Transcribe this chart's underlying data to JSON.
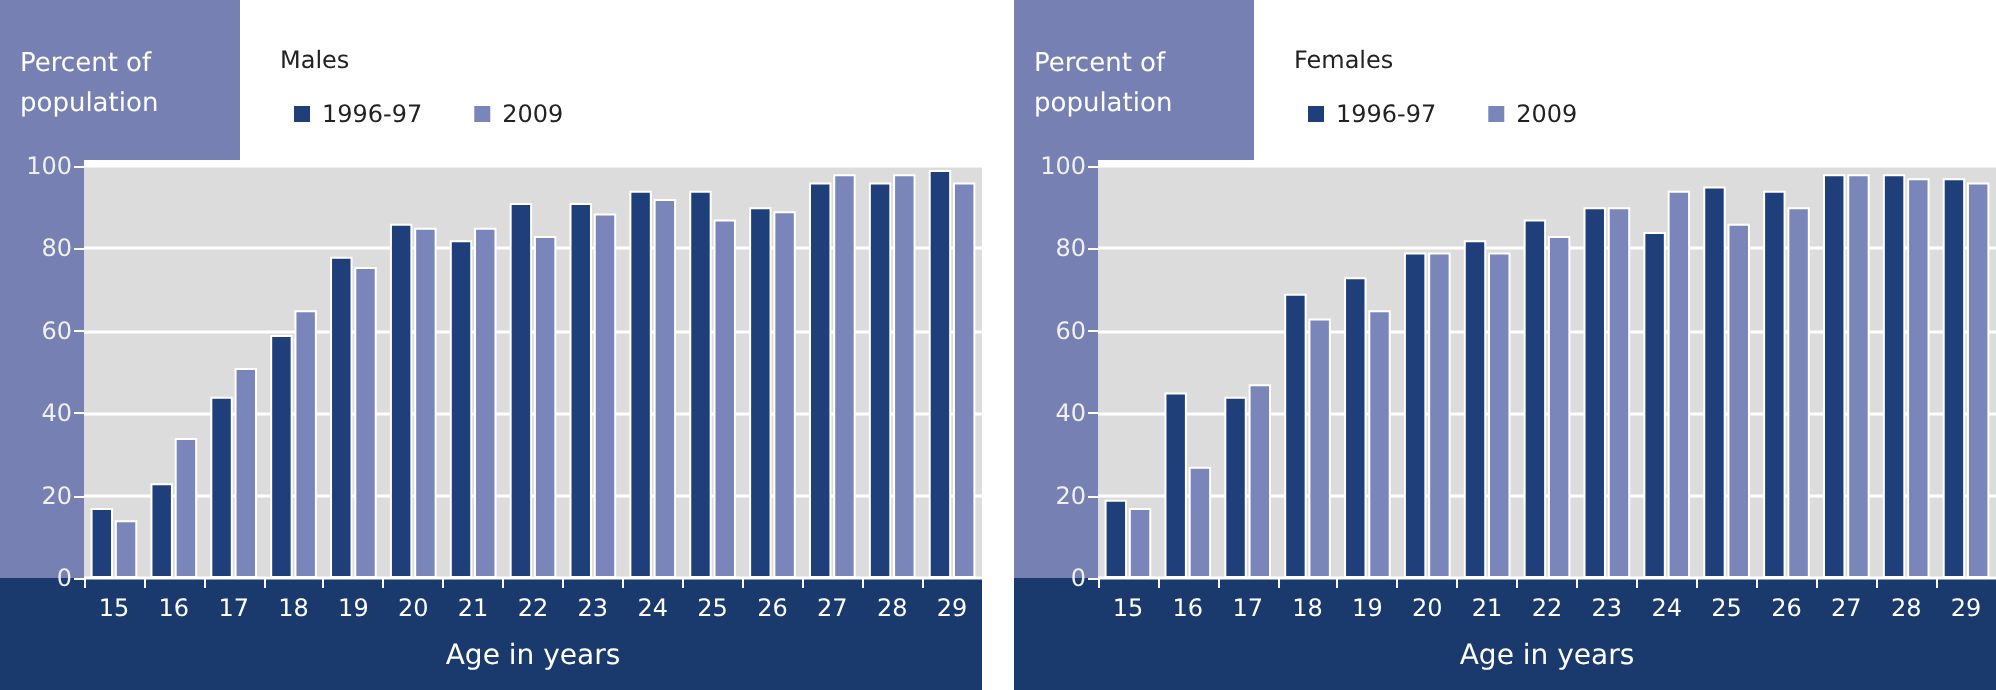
{
  "chart_data": [
    {
      "type": "bar",
      "legend_title": "Males",
      "ylabel": "Percent of population",
      "xlabel": "Age in years",
      "categories": [
        "15",
        "16",
        "17",
        "18",
        "19",
        "20",
        "21",
        "22",
        "23",
        "24",
        "25",
        "26",
        "27",
        "28",
        "29"
      ],
      "ylim": [
        0,
        100
      ],
      "yticks": [
        0,
        20,
        40,
        60,
        80,
        100
      ],
      "grid": "y",
      "legend": "top left",
      "series": [
        {
          "name": "1996-97",
          "color": "#1f3f7a",
          "values": [
            17,
            23,
            44,
            59,
            78,
            86,
            82,
            91,
            91,
            94,
            94,
            90,
            96,
            96,
            99
          ]
        },
        {
          "name": "2009",
          "color": "#7a86ba",
          "values": [
            14,
            34,
            51,
            65,
            75.5,
            85,
            85,
            83,
            88.5,
            92,
            87,
            89,
            98,
            98,
            96
          ]
        }
      ]
    },
    {
      "type": "bar",
      "legend_title": "Females",
      "ylabel": "Percent of population",
      "xlabel": "Age in years",
      "categories": [
        "15",
        "16",
        "17",
        "18",
        "19",
        "20",
        "21",
        "22",
        "23",
        "24",
        "25",
        "26",
        "27",
        "28",
        "29"
      ],
      "ylim": [
        0,
        100
      ],
      "yticks": [
        0,
        20,
        40,
        60,
        80,
        100
      ],
      "grid": "y",
      "legend": "top left",
      "series": [
        {
          "name": "1996-97",
          "color": "#1f3f7a",
          "values": [
            19,
            45,
            44,
            69,
            73,
            79,
            82,
            87,
            90,
            84,
            95,
            94,
            98,
            98,
            97
          ]
        },
        {
          "name": "2009",
          "color": "#7a86ba",
          "values": [
            17,
            27,
            47,
            63,
            65,
            79,
            79,
            83,
            90,
            94,
            86,
            90,
            98,
            97,
            96
          ]
        }
      ]
    }
  ]
}
